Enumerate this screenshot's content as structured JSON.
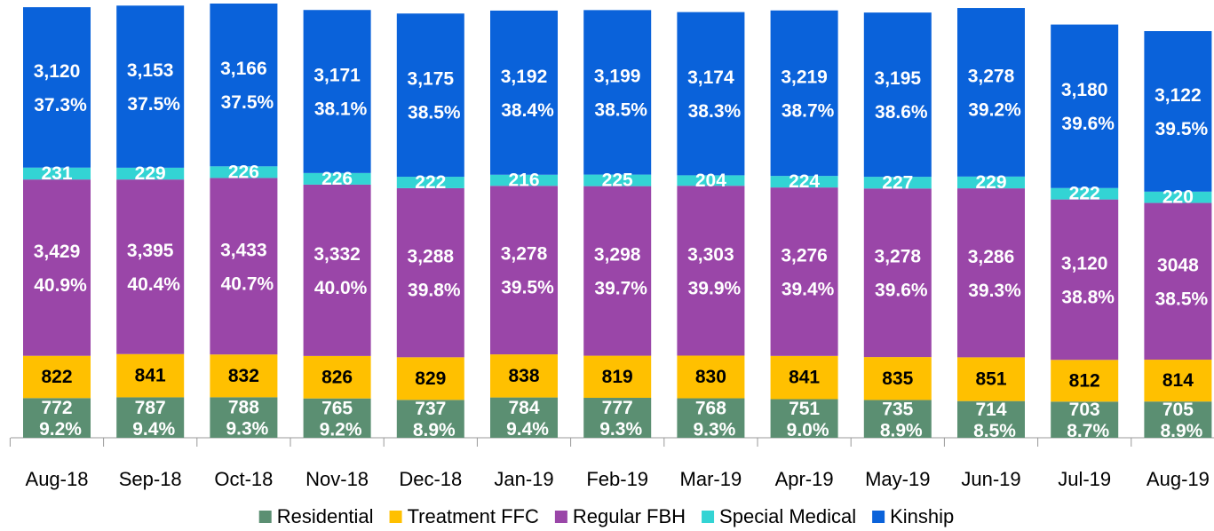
{
  "chart_data": {
    "type": "stacked_bar",
    "categories": [
      "Aug-18",
      "Sep-18",
      "Oct-18",
      "Nov-18",
      "Dec-18",
      "Jan-19",
      "Feb-19",
      "Mar-19",
      "Apr-19",
      "May-19",
      "Jun-19",
      "Jul-19",
      "Aug-19"
    ],
    "series": [
      {
        "name": "Residential",
        "color": "#5b8f72",
        "label_color": "#ffffff",
        "values": [
          772,
          787,
          788,
          765,
          737,
          784,
          777,
          768,
          751,
          735,
          714,
          703,
          705
        ],
        "share_labels": [
          "9.2%",
          "9.4%",
          "9.3%",
          "9.2%",
          "8.9%",
          "9.4%",
          "9.3%",
          "9.3%",
          "9.0%",
          "8.9%",
          "8.5%",
          "8.7%",
          "8.9%"
        ]
      },
      {
        "name": "Treatment FFC",
        "color": "#ffc000",
        "label_color": "#000000",
        "values": [
          822,
          841,
          832,
          826,
          829,
          838,
          819,
          830,
          841,
          835,
          851,
          812,
          814
        ]
      },
      {
        "name": "Regular FBH",
        "color": "#9a46a8",
        "label_color": "#ffffff",
        "values": [
          3429,
          3395,
          3433,
          3332,
          3288,
          3278,
          3298,
          3303,
          3276,
          3278,
          3286,
          3120,
          3048
        ],
        "value_labels": [
          "3,429",
          "3,395",
          "3,433",
          "3,332",
          "3,288",
          "3,278",
          "3,298",
          "3,303",
          "3,276",
          "3,278",
          "3,286",
          "3,120",
          "3048"
        ],
        "share_labels": [
          "40.9%",
          "40.4%",
          "40.7%",
          "40.0%",
          "39.8%",
          "39.5%",
          "39.7%",
          "39.9%",
          "39.4%",
          "39.6%",
          "39.3%",
          "38.8%",
          "38.5%"
        ]
      },
      {
        "name": "Special Medical",
        "color": "#33d4d4",
        "label_color": "#ffffff",
        "values": [
          231,
          229,
          226,
          226,
          222,
          216,
          225,
          204,
          224,
          227,
          229,
          222,
          220
        ]
      },
      {
        "name": "Kinship",
        "color": "#0a62da",
        "label_color": "#ffffff",
        "values": [
          3120,
          3153,
          3166,
          3171,
          3175,
          3192,
          3199,
          3174,
          3219,
          3195,
          3278,
          3180,
          3122
        ],
        "value_labels": [
          "3,120",
          "3,153",
          "3,166",
          "3,171",
          "3,175",
          "3,192",
          "3,199",
          "3,174",
          "3,219",
          "3,195",
          "3,278",
          "3,180",
          "3,122"
        ],
        "share_labels": [
          "37.3%",
          "37.5%",
          "37.5%",
          "38.1%",
          "38.5%",
          "38.4%",
          "38.5%",
          "38.3%",
          "38.7%",
          "38.6%",
          "39.2%",
          "39.6%",
          "39.5%"
        ]
      }
    ]
  }
}
